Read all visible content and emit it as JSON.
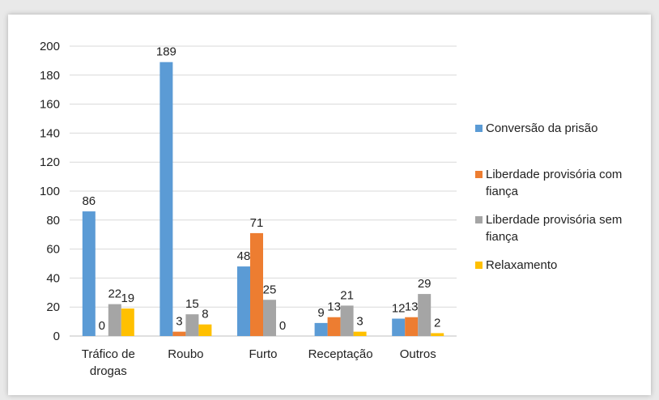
{
  "chart_data": {
    "type": "bar",
    "categories": [
      [
        "Tráfico de",
        "drogas"
      ],
      [
        "Roubo"
      ],
      [
        "Furto"
      ],
      [
        "Receptação"
      ],
      [
        "Outros"
      ]
    ],
    "series": [
      {
        "name": "Conversão da prisão",
        "color": "#5b9bd5",
        "values": [
          86,
          189,
          48,
          9,
          12
        ]
      },
      {
        "name": "Liberdade provisória com fiança",
        "color": "#ed7d31",
        "values": [
          0,
          3,
          71,
          13,
          13
        ]
      },
      {
        "name": "Liberdade provisória sem fiança",
        "color": "#a5a5a5",
        "values": [
          22,
          15,
          25,
          21,
          29
        ]
      },
      {
        "name": "Relaxamento",
        "color": "#ffc000",
        "values": [
          19,
          8,
          0,
          3,
          2
        ]
      }
    ],
    "ylim": [
      0,
      200
    ],
    "yticks": [
      0,
      20,
      40,
      60,
      80,
      100,
      120,
      140,
      160,
      180,
      200
    ],
    "grid": true,
    "legend": "right"
  }
}
